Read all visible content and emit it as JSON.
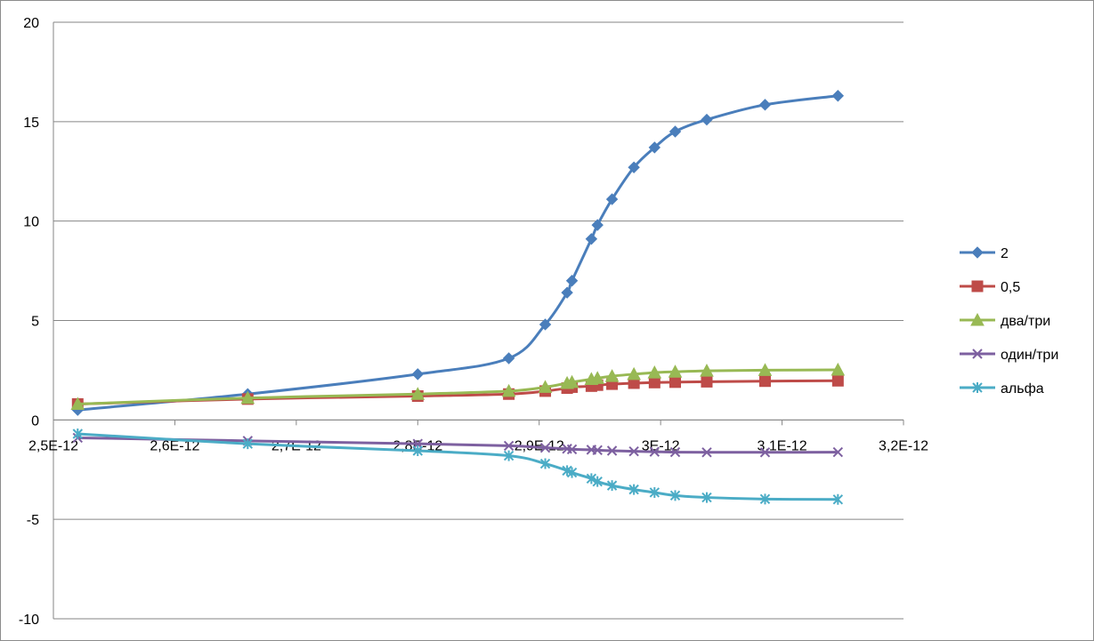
{
  "chart_data": {
    "type": "line",
    "title": "",
    "xlabel": "",
    "ylabel": "",
    "xlim": [
      2.5e-12,
      3.2e-12
    ],
    "ylim": [
      -10,
      20
    ],
    "x_tick_values": [
      2.5e-12,
      2.6e-12,
      2.7e-12,
      2.8e-12,
      2.9e-12,
      3e-12,
      3.1e-12,
      3.2e-12
    ],
    "x_tick_labels": [
      "2,5E-12",
      "2,6E-12",
      "2,7E-12",
      "2,8E-12",
      "2,9E-12",
      "3E-12",
      "3,1E-12",
      "3,2E-12"
    ],
    "y_tick_values": [
      -10,
      -5,
      0,
      5,
      10,
      15,
      20
    ],
    "y_tick_labels": [
      "-10",
      "-5",
      "0",
      "5",
      "10",
      "15",
      "20"
    ],
    "grid": "horizontal",
    "legend_position": "right",
    "smooth": true,
    "series": [
      {
        "name": "2",
        "color": "#4A7EBB",
        "marker": "diamond",
        "x": [
          2.52e-12,
          2.66e-12,
          2.8e-12,
          2.875e-12,
          2.905e-12,
          2.923e-12,
          2.927e-12,
          2.943e-12,
          2.948e-12,
          2.96e-12,
          2.978e-12,
          2.995e-12,
          3.012e-12,
          3.038e-12,
          3.086e-12,
          3.146e-12
        ],
        "values": [
          0.5,
          1.3,
          2.3,
          3.1,
          4.8,
          6.4,
          7.0,
          9.1,
          9.8,
          11.1,
          12.7,
          13.7,
          14.5,
          15.1,
          15.85,
          16.3
        ]
      },
      {
        "name": "0,5",
        "color": "#BE4B48",
        "marker": "square",
        "x": [
          2.52e-12,
          2.66e-12,
          2.8e-12,
          2.875e-12,
          2.905e-12,
          2.923e-12,
          2.927e-12,
          2.943e-12,
          2.948e-12,
          2.96e-12,
          2.978e-12,
          2.995e-12,
          3.012e-12,
          3.038e-12,
          3.086e-12,
          3.146e-12
        ],
        "values": [
          0.8,
          1.05,
          1.2,
          1.3,
          1.45,
          1.6,
          1.65,
          1.7,
          1.75,
          1.8,
          1.85,
          1.88,
          1.9,
          1.92,
          1.95,
          1.97
        ]
      },
      {
        "name": "два/три",
        "color": "#98B954",
        "marker": "triangle",
        "x": [
          2.52e-12,
          2.66e-12,
          2.8e-12,
          2.875e-12,
          2.905e-12,
          2.923e-12,
          2.927e-12,
          2.943e-12,
          2.948e-12,
          2.96e-12,
          2.978e-12,
          2.995e-12,
          3.012e-12,
          3.038e-12,
          3.086e-12,
          3.146e-12
        ],
        "values": [
          0.8,
          1.1,
          1.3,
          1.45,
          1.65,
          1.85,
          1.9,
          2.05,
          2.1,
          2.2,
          2.3,
          2.38,
          2.42,
          2.47,
          2.5,
          2.52
        ]
      },
      {
        "name": "один/три",
        "color": "#7D60A0",
        "marker": "x",
        "x": [
          2.52e-12,
          2.66e-12,
          2.8e-12,
          2.875e-12,
          2.905e-12,
          2.923e-12,
          2.927e-12,
          2.943e-12,
          2.948e-12,
          2.96e-12,
          2.978e-12,
          2.995e-12,
          3.012e-12,
          3.038e-12,
          3.086e-12,
          3.146e-12
        ],
        "values": [
          -0.9,
          -1.05,
          -1.2,
          -1.3,
          -1.4,
          -1.45,
          -1.48,
          -1.5,
          -1.52,
          -1.55,
          -1.58,
          -1.6,
          -1.62,
          -1.63,
          -1.63,
          -1.62
        ]
      },
      {
        "name": "альфа",
        "color": "#4BACC6",
        "marker": "asterisk",
        "x": [
          2.52e-12,
          2.66e-12,
          2.8e-12,
          2.875e-12,
          2.905e-12,
          2.923e-12,
          2.927e-12,
          2.943e-12,
          2.948e-12,
          2.96e-12,
          2.978e-12,
          2.995e-12,
          3.012e-12,
          3.038e-12,
          3.086e-12,
          3.146e-12
        ],
        "values": [
          -0.7,
          -1.2,
          -1.55,
          -1.8,
          -2.2,
          -2.55,
          -2.65,
          -2.95,
          -3.1,
          -3.3,
          -3.5,
          -3.65,
          -3.8,
          -3.9,
          -3.98,
          -4.0
        ]
      }
    ]
  }
}
